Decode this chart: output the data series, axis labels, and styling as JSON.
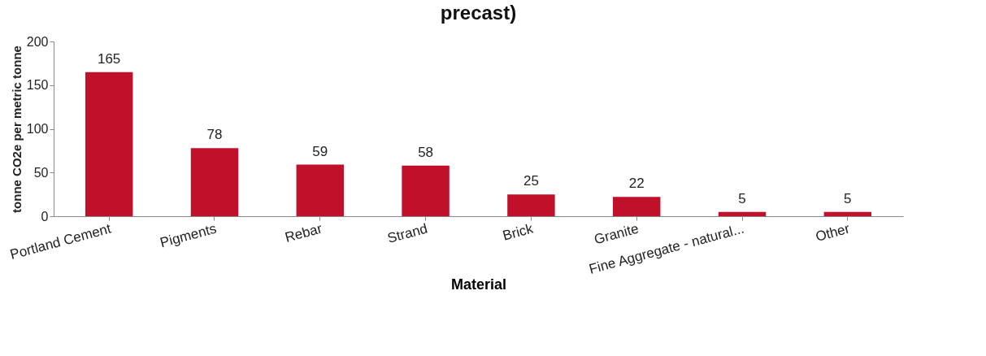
{
  "chart_data": {
    "type": "bar",
    "title": "precast)",
    "xlabel": "Material",
    "ylabel": "tonne CO2e per metric tonne",
    "categories": [
      "Portland Cement",
      "Pigments",
      "Rebar",
      "Strand",
      "Brick",
      "Granite",
      "Fine Aggregate - natural...",
      "Other"
    ],
    "values": [
      165,
      78,
      59,
      58,
      25,
      22,
      5,
      5
    ],
    "color": "#c0102a",
    "ylim": [
      0,
      200
    ],
    "yticks": [
      0,
      50,
      100,
      150,
      200
    ],
    "grid": false,
    "data_labels": true
  }
}
